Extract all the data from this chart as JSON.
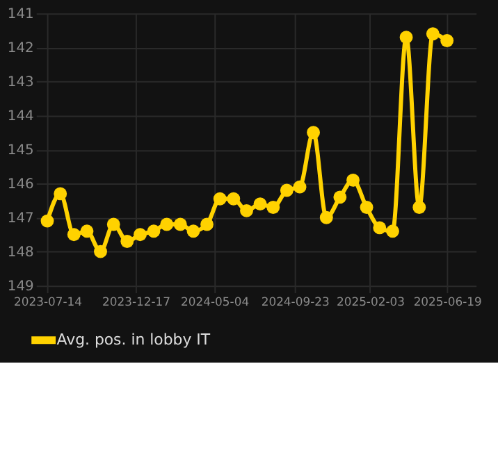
{
  "chart_data": {
    "type": "line",
    "x": [
      "2023-07-14",
      "2023-08-06",
      "2023-08-30",
      "2023-09-22",
      "2023-10-16",
      "2023-11-08",
      "2023-12-02",
      "2023-12-25",
      "2024-01-18",
      "2024-02-10",
      "2024-03-05",
      "2024-03-28",
      "2024-04-21",
      "2024-05-14",
      "2024-06-07",
      "2024-06-30",
      "2024-07-24",
      "2024-08-16",
      "2024-09-09",
      "2024-10-02",
      "2024-10-26",
      "2024-11-18",
      "2024-12-12",
      "2025-01-04",
      "2025-01-28",
      "2025-02-20",
      "2025-03-15",
      "2025-04-08",
      "2025-05-01",
      "2025-05-25",
      "2025-06-19"
    ],
    "series": [
      {
        "name": "Avg. pos. in lobby IT",
        "color": "#ffd200",
        "values": [
          147.1,
          146.3,
          147.5,
          147.4,
          148.0,
          147.2,
          147.7,
          147.5,
          147.4,
          147.2,
          147.2,
          147.4,
          147.2,
          146.45,
          146.45,
          146.8,
          146.6,
          146.7,
          146.2,
          146.1,
          144.5,
          147.0,
          146.4,
          145.9,
          146.7,
          147.3,
          147.4,
          141.7,
          146.7,
          141.6,
          141.8
        ]
      }
    ],
    "xlim": [
      "2023-06-24",
      "2025-08-09"
    ],
    "xticks": [
      "2023-07-14",
      "2023-12-17",
      "2024-05-04",
      "2024-09-23",
      "2025-02-03",
      "2025-06-19"
    ],
    "ylim": [
      149,
      141
    ],
    "yticks": [
      141,
      142,
      143,
      144,
      145,
      146,
      147,
      148,
      149
    ],
    "grid": true,
    "legend": "bottom",
    "marker": "circle",
    "line_style": "solid"
  }
}
